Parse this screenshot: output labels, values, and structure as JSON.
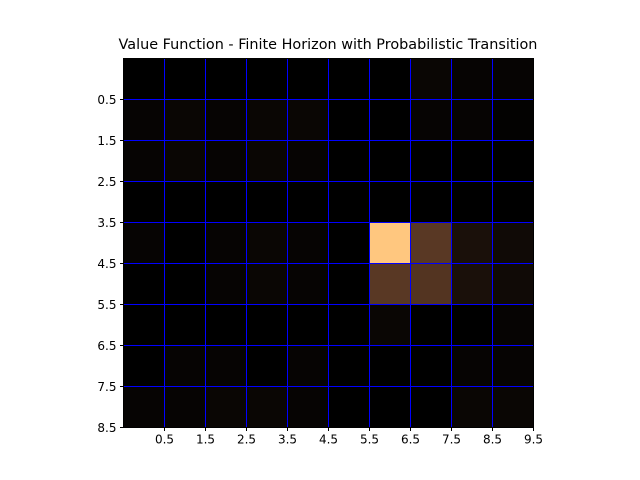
{
  "chart_data": {
    "type": "heatmap",
    "title": "Value Function - Finite Horizon with Probabilistic Transition",
    "xlabel": "",
    "ylabel": "",
    "x_tick_labels": [
      "0.5",
      "1.5",
      "2.5",
      "3.5",
      "4.5",
      "5.5",
      "6.5",
      "7.5",
      "8.5",
      "9.5"
    ],
    "y_tick_labels": [
      "0.5",
      "1.5",
      "2.5",
      "3.5",
      "4.5",
      "5.5",
      "6.5",
      "7.5",
      "8.5"
    ],
    "grid": true,
    "grid_color": "#0000ff",
    "colormap": "copper",
    "vmin": 0.0,
    "vmax": 1.0,
    "values": [
      [
        0.0,
        0.0,
        0.0,
        0.0,
        0.0,
        0.0,
        0.0,
        0.03,
        0.02,
        0.02
      ],
      [
        0.02,
        0.03,
        0.02,
        0.03,
        0.03,
        0.0,
        0.0,
        0.02,
        0.02,
        0.01
      ],
      [
        0.02,
        0.03,
        0.02,
        0.03,
        0.02,
        0.0,
        0.0,
        0.0,
        0.0,
        0.0
      ],
      [
        0.0,
        0.0,
        0.0,
        0.0,
        0.0,
        0.0,
        0.0,
        0.0,
        0.0,
        0.0
      ],
      [
        0.02,
        0.0,
        0.02,
        0.03,
        0.02,
        0.0,
        1.0,
        0.28,
        0.08,
        0.05
      ],
      [
        0.0,
        0.0,
        0.02,
        0.03,
        0.02,
        0.0,
        0.28,
        0.26,
        0.08,
        0.05
      ],
      [
        0.0,
        0.0,
        0.0,
        0.0,
        0.0,
        0.0,
        0.03,
        0.0,
        0.0,
        0.02
      ],
      [
        0.0,
        0.02,
        0.02,
        0.0,
        0.02,
        0.0,
        0.0,
        0.0,
        0.02,
        0.02
      ],
      [
        0.02,
        0.02,
        0.03,
        0.03,
        0.02,
        0.0,
        0.0,
        0.0,
        0.03,
        0.03
      ]
    ]
  }
}
